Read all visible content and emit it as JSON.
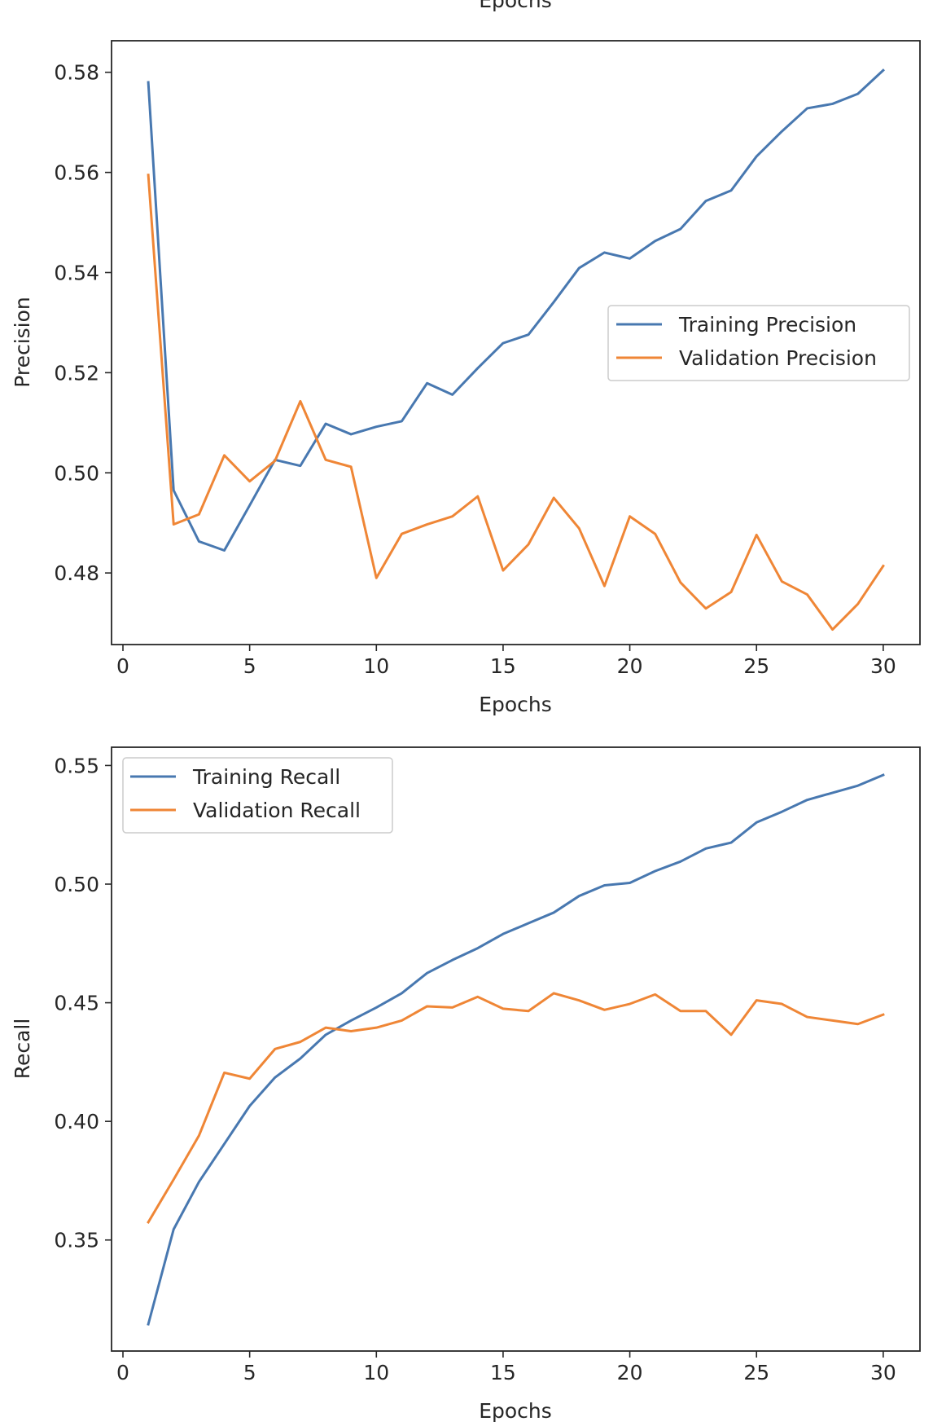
{
  "chart_data": [
    {
      "type": "line",
      "top_label": "Epochs",
      "xlabel": "Epochs",
      "ylabel": "Precision",
      "xlim": [
        -0.45,
        31.45
      ],
      "ylim": [
        0.4657,
        0.5863
      ],
      "xticks": [
        0,
        5,
        10,
        15,
        20,
        25,
        30
      ],
      "yticks": [
        0.48,
        0.5,
        0.52,
        0.54,
        0.56,
        0.58
      ],
      "ytick_labels": [
        "0.48",
        "0.50",
        "0.52",
        "0.54",
        "0.56",
        "0.58"
      ],
      "legend_position": "center-right",
      "x": [
        1,
        2,
        3,
        4,
        5,
        6,
        7,
        8,
        9,
        10,
        11,
        12,
        13,
        14,
        15,
        16,
        17,
        18,
        19,
        20,
        21,
        22,
        23,
        24,
        25,
        26,
        27,
        28,
        29,
        30
      ],
      "series": [
        {
          "name": "Training Precision",
          "color": "#4878b0",
          "values": [
            0.578,
            0.4965,
            0.4863,
            0.4845,
            0.4935,
            0.5026,
            0.5014,
            0.5098,
            0.5077,
            0.5092,
            0.5103,
            0.5179,
            0.5156,
            0.5209,
            0.5259,
            0.5276,
            0.5341,
            0.5409,
            0.544,
            0.5428,
            0.5463,
            0.5487,
            0.5543,
            0.5564,
            0.5632,
            0.5682,
            0.5728,
            0.5737,
            0.5757,
            0.5804
          ]
        },
        {
          "name": "Validation Precision",
          "color": "#ef8636",
          "values": [
            0.5595,
            0.4897,
            0.4917,
            0.5035,
            0.4983,
            0.5024,
            0.5143,
            0.5026,
            0.5012,
            0.479,
            0.4878,
            0.4897,
            0.4913,
            0.4953,
            0.4805,
            0.4857,
            0.495,
            0.4889,
            0.4774,
            0.4913,
            0.4878,
            0.4781,
            0.4729,
            0.4762,
            0.4876,
            0.4783,
            0.4757,
            0.4687,
            0.4738,
            0.4814
          ]
        }
      ]
    },
    {
      "type": "line",
      "xlabel": "Epochs",
      "ylabel": "Recall",
      "xlim": [
        -0.45,
        31.45
      ],
      "ylim": [
        0.3032,
        0.5577
      ],
      "xticks": [
        0,
        5,
        10,
        15,
        20,
        25,
        30
      ],
      "yticks": [
        0.35,
        0.4,
        0.45,
        0.5,
        0.55
      ],
      "ytick_labels": [
        "0.35",
        "0.40",
        "0.45",
        "0.50",
        "0.55"
      ],
      "legend_position": "upper-left",
      "x": [
        1,
        2,
        3,
        4,
        5,
        6,
        7,
        8,
        9,
        10,
        11,
        12,
        13,
        14,
        15,
        16,
        17,
        18,
        19,
        20,
        21,
        22,
        23,
        24,
        25,
        26,
        27,
        28,
        29,
        30
      ],
      "series": [
        {
          "name": "Training Recall",
          "color": "#4878b0",
          "values": [
            0.3145,
            0.3545,
            0.3745,
            0.3905,
            0.4065,
            0.4185,
            0.4265,
            0.4365,
            0.4425,
            0.448,
            0.454,
            0.4625,
            0.468,
            0.473,
            0.479,
            0.4835,
            0.488,
            0.495,
            0.4995,
            0.5005,
            0.5055,
            0.5095,
            0.515,
            0.5175,
            0.526,
            0.5305,
            0.5355,
            0.5385,
            0.5415,
            0.546
          ]
        },
        {
          "name": "Validation Recall",
          "color": "#ef8636",
          "values": [
            0.3575,
            0.3755,
            0.394,
            0.4205,
            0.418,
            0.4305,
            0.4335,
            0.4395,
            0.438,
            0.4395,
            0.4425,
            0.4485,
            0.448,
            0.4525,
            0.4475,
            0.4465,
            0.454,
            0.451,
            0.447,
            0.4495,
            0.4535,
            0.4465,
            0.4465,
            0.4365,
            0.451,
            0.4495,
            0.444,
            0.4425,
            0.441,
            0.445
          ]
        }
      ]
    }
  ]
}
